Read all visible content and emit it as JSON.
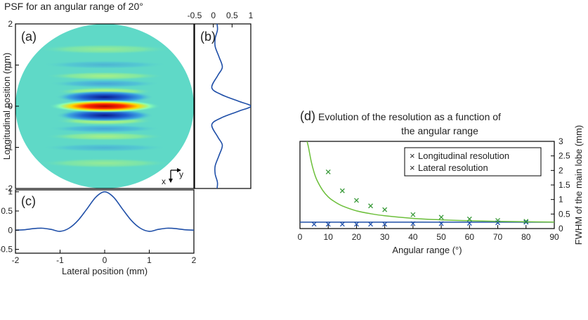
{
  "chart_data": [
    {
      "panel": "a",
      "type": "heatmap",
      "label": "(a)",
      "title": "PSF for an angular range of 20°",
      "xlabel": "",
      "ylabel": "Longitudinal position (mm)",
      "xlim": [
        -2,
        2
      ],
      "ylim": [
        -2,
        2
      ],
      "yticks": [
        "-2",
        "-1",
        "0",
        "1",
        "2"
      ],
      "orientation_labels": [
        "x",
        "y"
      ],
      "colormap": "jet"
    },
    {
      "panel": "b",
      "type": "line",
      "label": "(b)",
      "xlim": [
        -0.5,
        1
      ],
      "ylim": [
        -2,
        2
      ],
      "xticks": [
        "-0.5",
        "0",
        "0.5",
        "1"
      ],
      "color": "#1f4fa8",
      "series": [
        {
          "x": [
            0.1,
            0.11,
            0.05,
            0.05,
            0.15,
            0.24,
            0.12,
            -0.04,
            0.22,
            0.68,
            1.0,
            0.68,
            0.22,
            -0.04,
            0.12,
            0.24,
            0.15,
            0.05,
            0.05,
            0.11,
            0.1
          ],
          "y": [
            2.0,
            1.85,
            1.65,
            1.45,
            1.2,
            0.95,
            0.75,
            0.45,
            0.28,
            0.12,
            0.0,
            -0.12,
            -0.28,
            -0.45,
            -0.75,
            -0.95,
            -1.2,
            -1.45,
            -1.65,
            -1.85,
            -2.0
          ]
        }
      ]
    },
    {
      "panel": "c",
      "type": "line",
      "label": "(c)",
      "xlabel": "Lateral position (mm)",
      "xlim": [
        -2,
        2
      ],
      "ylim": [
        -0.6,
        1.05
      ],
      "xticks": [
        "-2",
        "-1",
        "0",
        "1",
        "2"
      ],
      "yticks": [
        "-0.5",
        "0",
        "0.5",
        "1"
      ],
      "color": "#1f4fa8",
      "series": [
        {
          "x": [
            -2.0,
            -1.8,
            -1.6,
            -1.4,
            -1.2,
            -1.0,
            -0.8,
            -0.6,
            -0.4,
            -0.2,
            0.0,
            0.2,
            0.4,
            0.6,
            0.8,
            1.0,
            1.2,
            1.4,
            1.6,
            1.8,
            2.0
          ],
          "y": [
            0.0,
            0.01,
            0.04,
            0.05,
            0.02,
            -0.03,
            0.05,
            0.25,
            0.55,
            0.86,
            1.0,
            0.86,
            0.55,
            0.25,
            0.05,
            -0.03,
            0.02,
            0.05,
            0.04,
            0.01,
            0.0
          ]
        }
      ]
    },
    {
      "panel": "d",
      "type": "scatter",
      "label": "(d)",
      "title": "Evolution of the resolution as a function of",
      "title_line2": "the angular range",
      "xlabel": "Angular range (°)",
      "ylabel": "FWHM of the main lobe (mm)",
      "xlim": [
        0,
        90
      ],
      "ylim": [
        0,
        3
      ],
      "xticks": [
        "0",
        "10",
        "20",
        "30",
        "40",
        "50",
        "60",
        "70",
        "80",
        "90"
      ],
      "yticks": [
        "0",
        "0.5",
        "1",
        "1.5",
        "2",
        "2.5",
        "3"
      ],
      "legend_position": "top-right",
      "series": [
        {
          "name": "Longitudinal resolution",
          "color": "#1f4fa8",
          "marker": "x",
          "x": [
            5,
            10,
            15,
            20,
            25,
            30,
            40,
            50,
            60,
            70,
            80
          ],
          "y": [
            0.15,
            0.15,
            0.15,
            0.15,
            0.15,
            0.15,
            0.17,
            0.17,
            0.18,
            0.2,
            0.22
          ]
        },
        {
          "name": "Lateral resolution",
          "color": "#3a9a3a",
          "marker": "x",
          "x": [
            10,
            15,
            20,
            25,
            30,
            40,
            50,
            60,
            70,
            80
          ],
          "y": [
            1.95,
            1.3,
            0.97,
            0.78,
            0.65,
            0.48,
            0.39,
            0.33,
            0.28,
            0.25
          ]
        }
      ],
      "lines": [
        {
          "color": "#1f4fa8",
          "x": [
            0,
            90
          ],
          "y": [
            0.22,
            0.22
          ]
        },
        {
          "color": "#6cbf3a",
          "x": [
            2.5,
            3,
            4,
            5,
            6,
            8,
            10,
            12,
            15,
            20,
            25,
            30,
            40,
            50,
            60,
            70,
            80,
            90
          ],
          "y": [
            3.0,
            2.8,
            2.3,
            1.93,
            1.67,
            1.32,
            1.09,
            0.94,
            0.78,
            0.61,
            0.51,
            0.44,
            0.35,
            0.3,
            0.27,
            0.25,
            0.235,
            0.225
          ]
        }
      ]
    }
  ]
}
